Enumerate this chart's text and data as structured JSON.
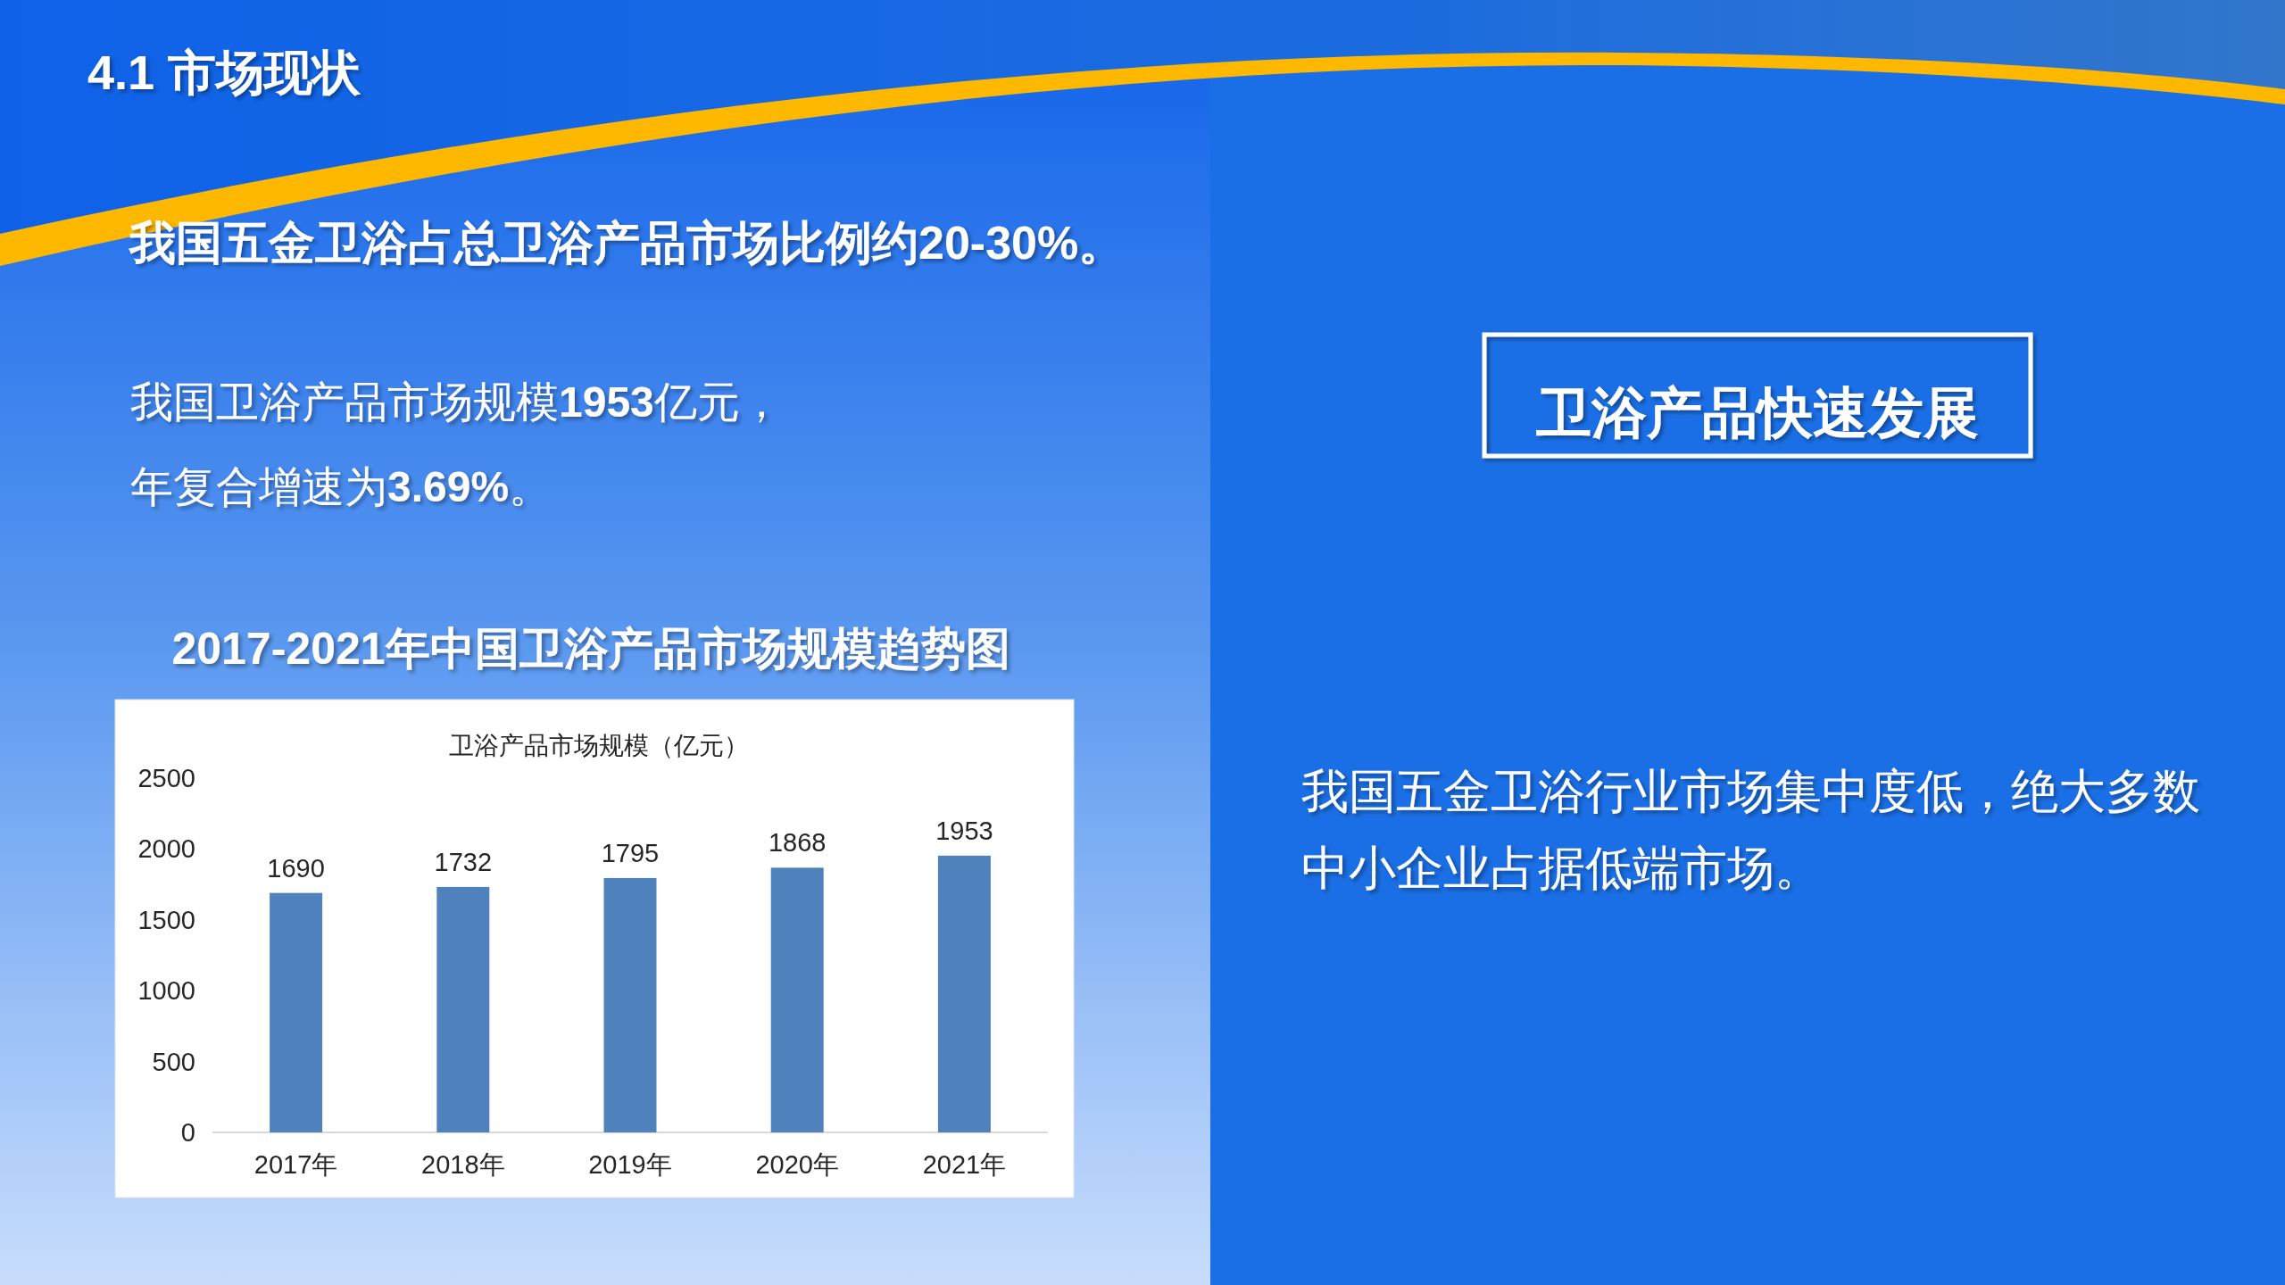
{
  "chart_data": {
    "type": "bar",
    "title": "2017-2021年中国卫浴产品市场规模趋势图",
    "subtitle": "卫浴产品市场规模（亿元）",
    "categories": [
      "2017年",
      "2018年",
      "2019年",
      "2020年",
      "2021年"
    ],
    "values": [
      1690,
      1732,
      1795,
      1868,
      1953
    ],
    "color": "#4f81bd",
    "ylim": [
      0,
      2500
    ],
    "yticks": [
      0,
      500,
      1000,
      1500,
      2000,
      2500
    ],
    "data_labels": true,
    "annotations": [
      "4.1 市场现状",
      "我国五金卫浴占总卫浴产品市场比例约20-30%。",
      "我国卫浴产品市场规模1953亿元，",
      "年复合增速为3.69%。",
      "卫浴产品快速发展",
      "我国五金卫浴行业市场集中度低，绝大多数中小企业占据低端市场。"
    ]
  }
}
